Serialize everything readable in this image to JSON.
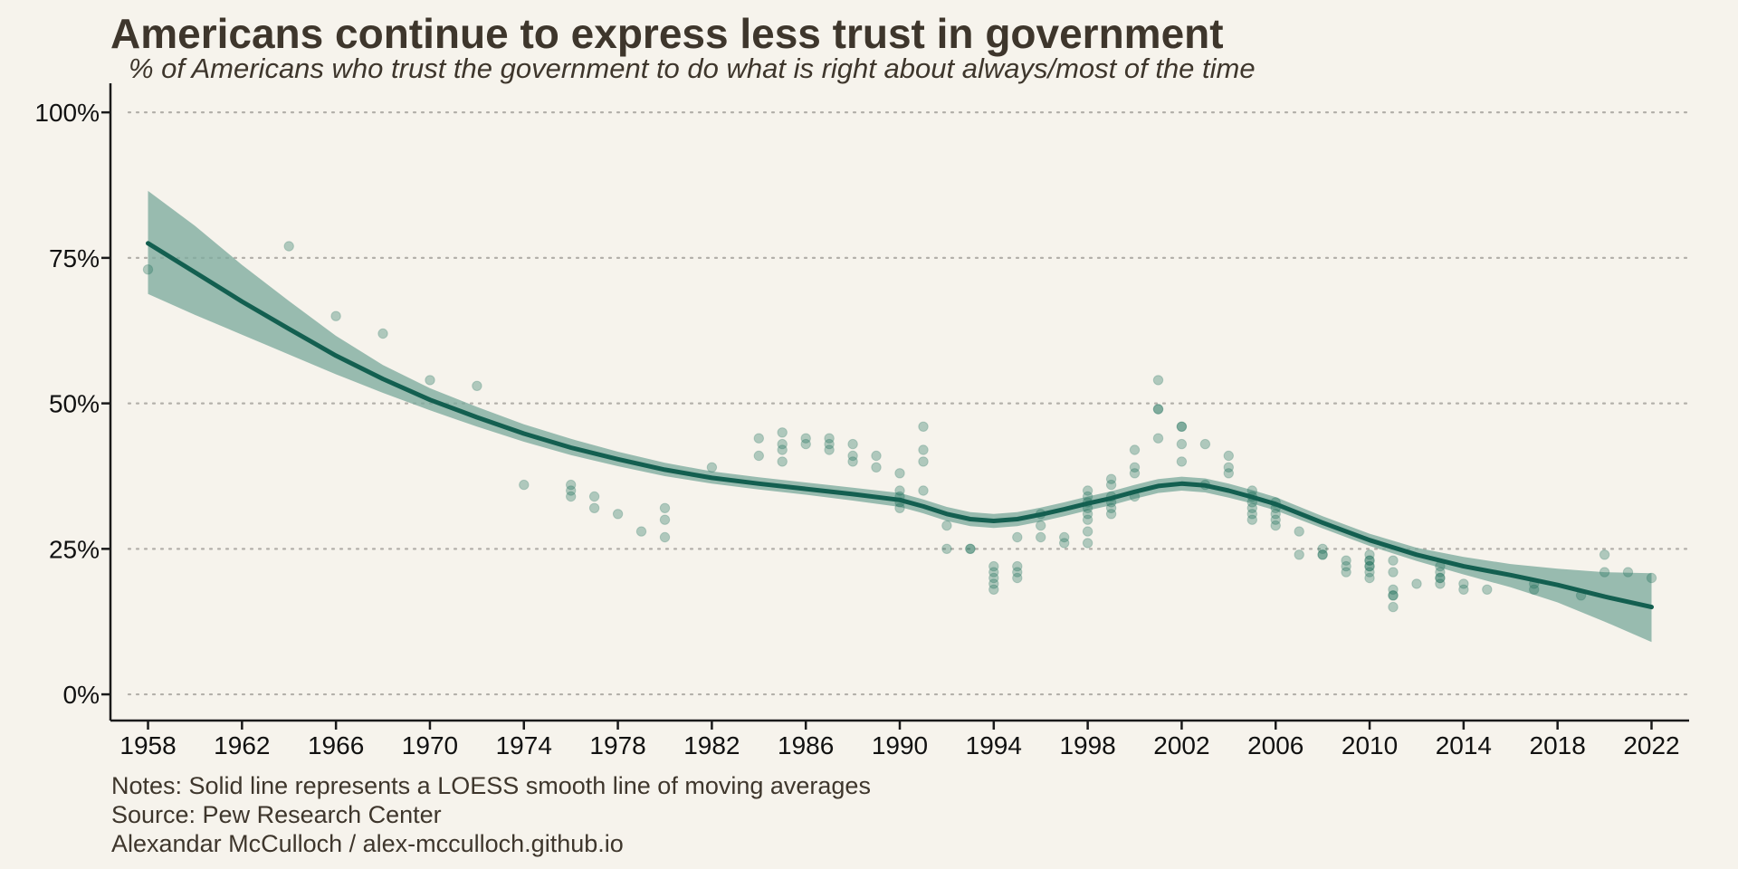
{
  "title": "Americans continue to express less trust in government",
  "subtitle": "% of Americans who trust the government to do what is right about always/most of the time",
  "notes": [
    "Notes: Solid line represents a LOESS smooth line of moving averages",
    "Source: Pew Research Center",
    "Alexandar McCulloch / alex-mcculloch.github.io"
  ],
  "colors": {
    "background": "#f6f3ec",
    "text": "#3e362c",
    "line": "#135f50",
    "band": "#7eaa9d",
    "point": "#1e6f5c",
    "grid": "#b3b0aa",
    "axis": "#1a1a1a"
  },
  "chart_data": {
    "type": "scatter",
    "title": "Americans continue to express less trust in government",
    "subtitle": "% of Americans who trust the government to do what is right about always/most of the time",
    "xlabel": "",
    "ylabel": "",
    "xlim": [
      1956.4,
      2023.6
    ],
    "ylim": [
      -4.5,
      105
    ],
    "x_ticks": [
      1958,
      1962,
      1966,
      1970,
      1974,
      1978,
      1982,
      1986,
      1990,
      1994,
      1998,
      2002,
      2006,
      2010,
      2014,
      2018,
      2022
    ],
    "y_ticks": [
      0,
      25,
      50,
      75,
      100
    ],
    "y_tick_labels": [
      "0%",
      "25%",
      "50%",
      "75%",
      "100%"
    ],
    "grid": "horizontal dotted",
    "legend": "none",
    "series": [
      {
        "kind": "points",
        "x": [
          1958,
          1964,
          1966,
          1968,
          1970,
          1972,
          1974,
          1976,
          1976,
          1976,
          1977,
          1977,
          1978,
          1979,
          1980,
          1980,
          1980,
          1982,
          1984,
          1984,
          1985,
          1985,
          1985,
          1985,
          1986,
          1986,
          1987,
          1987,
          1987,
          1988,
          1988,
          1988,
          1989,
          1989,
          1990,
          1990,
          1990,
          1990,
          1990,
          1991,
          1991,
          1991,
          1991,
          1992,
          1992,
          1993,
          1993,
          1994,
          1994,
          1994,
          1994,
          1994,
          1995,
          1995,
          1995,
          1995,
          1996,
          1996,
          1996,
          1997,
          1997,
          1998,
          1998,
          1998,
          1998,
          1998,
          1998,
          1998,
          1998,
          1999,
          1999,
          1999,
          1999,
          1999,
          1999,
          2000,
          2000,
          2000,
          2000,
          2001,
          2001,
          2001,
          2001,
          2002,
          2002,
          2002,
          2002,
          2003,
          2003,
          2004,
          2004,
          2004,
          2005,
          2005,
          2005,
          2005,
          2005,
          2005,
          2006,
          2006,
          2006,
          2006,
          2006,
          2007,
          2007,
          2008,
          2008,
          2008,
          2009,
          2009,
          2009,
          2010,
          2010,
          2010,
          2010,
          2010,
          2010,
          2010,
          2011,
          2011,
          2011,
          2011,
          2011,
          2011,
          2012,
          2013,
          2013,
          2013,
          2013,
          2013,
          2014,
          2014,
          2015,
          2017,
          2017,
          2019,
          2020,
          2020,
          2021,
          2022
        ],
        "y": [
          73,
          77,
          65,
          62,
          54,
          53,
          36,
          36,
          35,
          34,
          34,
          32,
          31,
          28,
          32,
          30,
          27,
          39,
          44,
          41,
          45,
          43,
          42,
          40,
          44,
          43,
          44,
          43,
          42,
          43,
          41,
          40,
          41,
          39,
          38,
          35,
          34,
          33,
          32,
          46,
          42,
          40,
          35,
          29,
          25,
          25,
          25,
          22,
          21,
          20,
          19,
          18,
          27,
          22,
          21,
          20,
          31,
          29,
          27,
          27,
          26,
          35,
          33,
          32,
          31,
          30,
          28,
          26,
          34,
          37,
          36,
          34,
          33,
          32,
          31,
          42,
          39,
          38,
          34,
          54,
          49,
          49,
          44,
          46,
          46,
          43,
          40,
          43,
          36,
          41,
          39,
          38,
          35,
          34,
          33,
          32,
          31,
          30,
          33,
          32,
          31,
          30,
          29,
          28,
          24,
          25,
          24,
          24,
          23,
          22,
          21,
          24,
          23,
          23,
          22,
          22,
          21,
          20,
          23,
          21,
          18,
          17,
          17,
          15,
          19,
          22,
          21,
          20,
          20,
          19,
          19,
          18,
          18,
          19,
          18,
          17,
          24,
          21,
          21,
          20
        ]
      },
      {
        "kind": "loess",
        "x": [
          1958,
          1960,
          1962,
          1964,
          1966,
          1968,
          1970,
          1972,
          1974,
          1976,
          1978,
          1980,
          1982,
          1984,
          1986,
          1988,
          1990,
          1991,
          1992,
          1993,
          1994,
          1995,
          1996,
          1997,
          1998,
          1999,
          2000,
          2001,
          2002,
          2003,
          2004,
          2005,
          2006,
          2008,
          2010,
          2012,
          2014,
          2016,
          2018,
          2020,
          2022
        ],
        "y": [
          77.5,
          72.5,
          67.5,
          62.8,
          58.2,
          54.2,
          50.6,
          47.6,
          44.8,
          42.4,
          40.4,
          38.6,
          37.2,
          36.2,
          35.3,
          34.4,
          33.4,
          32.3,
          31.0,
          30.1,
          29.8,
          30.1,
          30.9,
          31.8,
          32.8,
          33.7,
          34.8,
          35.8,
          36.2,
          35.9,
          35.0,
          33.9,
          32.7,
          29.5,
          26.5,
          24.0,
          22.0,
          20.5,
          18.8,
          16.8,
          15.0
        ],
        "ci_lower": [
          68.8,
          65.2,
          61.8,
          58.4,
          55.0,
          51.8,
          48.8,
          46.0,
          43.4,
          41.1,
          39.2,
          37.5,
          36.2,
          35.2,
          34.3,
          33.3,
          32.2,
          31.1,
          29.8,
          28.9,
          28.6,
          28.9,
          29.7,
          30.6,
          31.6,
          32.5,
          33.6,
          34.6,
          35.0,
          34.7,
          33.8,
          32.8,
          31.6,
          28.5,
          25.5,
          22.9,
          20.6,
          18.4,
          15.8,
          12.5,
          9.0
        ],
        "ci_upper": [
          86.5,
          80.5,
          73.8,
          67.6,
          61.6,
          56.6,
          52.6,
          49.4,
          46.4,
          43.9,
          41.7,
          39.8,
          38.3,
          37.3,
          36.4,
          35.5,
          34.6,
          33.5,
          32.2,
          31.3,
          31.0,
          31.3,
          32.1,
          33.0,
          34.0,
          34.9,
          36.0,
          37.0,
          37.4,
          37.1,
          36.2,
          35.1,
          33.9,
          30.6,
          27.6,
          25.2,
          23.6,
          22.4,
          21.6,
          21.0,
          20.8
        ]
      }
    ]
  }
}
